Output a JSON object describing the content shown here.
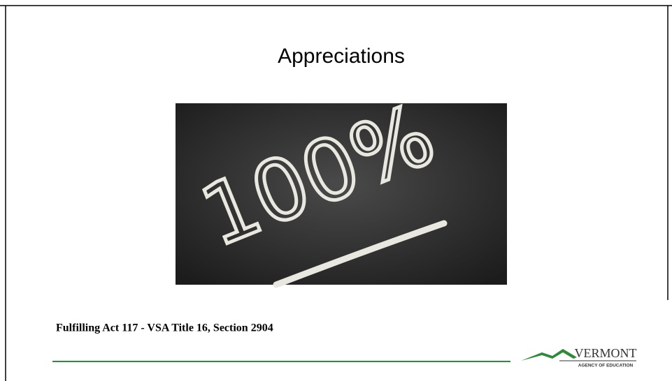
{
  "slide": {
    "title": "Appreciations",
    "image": {
      "text": "100%"
    },
    "footer": "Fulfilling Act 117 - VSA Title 16, Section 2904",
    "logo": {
      "name": "VERMONT",
      "subtitle": "AGENCY OF EDUCATION"
    }
  }
}
